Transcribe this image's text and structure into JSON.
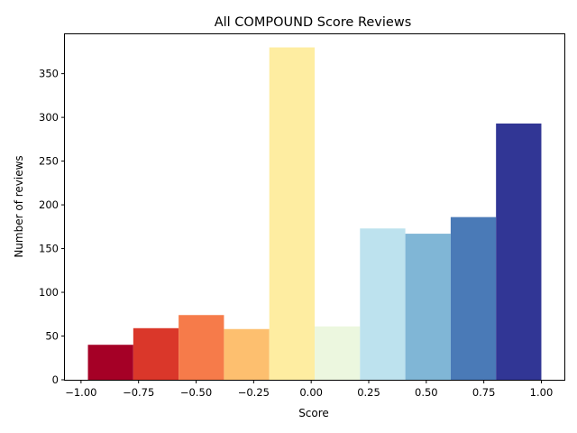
{
  "chart_data": {
    "type": "bar",
    "title": "All COMPOUND Score Reviews",
    "xlabel": "Score",
    "ylabel": "Number of reviews",
    "xlim": [
      -1.07,
      1.1
    ],
    "ylim": [
      0,
      395
    ],
    "grid": false,
    "bins": [
      {
        "x0": -0.97,
        "x1": -0.773,
        "value": 40,
        "color": "#a50026"
      },
      {
        "x0": -0.773,
        "x1": -0.576,
        "value": 59,
        "color": "#da372a"
      },
      {
        "x0": -0.576,
        "x1": -0.379,
        "value": 74,
        "color": "#f67b4a"
      },
      {
        "x0": -0.379,
        "x1": -0.182,
        "value": 58,
        "color": "#fdbf6f"
      },
      {
        "x0": -0.182,
        "x1": 0.015,
        "value": 380,
        "color": "#feeda1"
      },
      {
        "x0": 0.015,
        "x1": 0.212,
        "value": 61,
        "color": "#ecf7df"
      },
      {
        "x0": 0.212,
        "x1": 0.409,
        "value": 173,
        "color": "#bde2ee"
      },
      {
        "x0": 0.409,
        "x1": 0.606,
        "value": 167,
        "color": "#80b6d6"
      },
      {
        "x0": 0.606,
        "x1": 0.803,
        "value": 186,
        "color": "#4a7ab7"
      },
      {
        "x0": 0.803,
        "x1": 1.0,
        "value": 293,
        "color": "#313695"
      }
    ],
    "xticks": [
      {
        "value": -1.0,
        "label": "−1.00"
      },
      {
        "value": -0.75,
        "label": "−0.75"
      },
      {
        "value": -0.5,
        "label": "−0.50"
      },
      {
        "value": -0.25,
        "label": "−0.25"
      },
      {
        "value": 0.0,
        "label": "0.00"
      },
      {
        "value": 0.25,
        "label": "0.25"
      },
      {
        "value": 0.5,
        "label": "0.50"
      },
      {
        "value": 0.75,
        "label": "0.75"
      },
      {
        "value": 1.0,
        "label": "1.00"
      }
    ],
    "yticks": [
      {
        "value": 0,
        "label": "0"
      },
      {
        "value": 50,
        "label": "50"
      },
      {
        "value": 100,
        "label": "100"
      },
      {
        "value": 150,
        "label": "150"
      },
      {
        "value": 200,
        "label": "200"
      },
      {
        "value": 250,
        "label": "250"
      },
      {
        "value": 300,
        "label": "300"
      },
      {
        "value": 350,
        "label": "350"
      }
    ]
  }
}
